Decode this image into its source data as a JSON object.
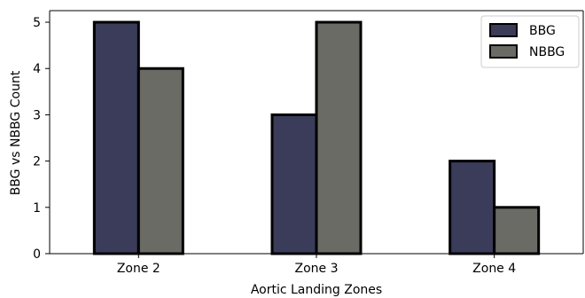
{
  "chart_data": {
    "type": "bar",
    "categories": [
      "Zone 2",
      "Zone 3",
      "Zone 4"
    ],
    "series": [
      {
        "name": "BBG",
        "values": [
          5,
          3,
          2
        ],
        "color": "#3a3c5a"
      },
      {
        "name": "NBBG",
        "values": [
          4,
          5,
          1
        ],
        "color": "#6a6b64"
      }
    ],
    "xlabel": "Aortic Landing Zones",
    "ylabel": "BBG vs NBBG Count",
    "ylim": [
      0,
      5.25
    ],
    "yticks": [
      0,
      1,
      2,
      3,
      4,
      5
    ],
    "legend": "top-right",
    "grid": false
  }
}
